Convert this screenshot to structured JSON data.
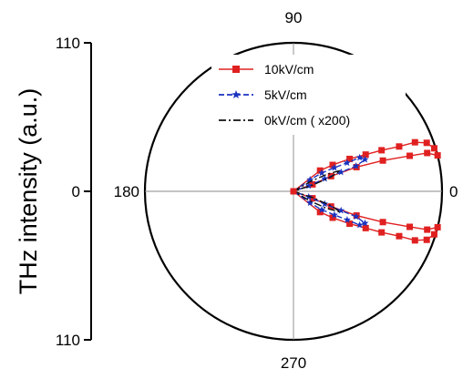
{
  "chart_data": {
    "type": "scatter",
    "coordinate_system": "polar",
    "title": "",
    "ylabel": "THz intensity (a.u.)",
    "radial_axis": {
      "min": 0,
      "max": 110,
      "tick_labels": [
        "110",
        "0",
        "110"
      ]
    },
    "angle_labels": {
      "top": "90",
      "left": "180",
      "right": "0",
      "bottom": "270"
    },
    "grid": true,
    "legend_position": "top-left (inside)",
    "series": [
      {
        "name": "10kV/cm",
        "color": "#e02020",
        "marker": "square",
        "line": "solid",
        "points": [
          {
            "r": 0,
            "theta": 0
          },
          {
            "r": 25,
            "theta": 38
          },
          {
            "r": 35,
            "theta": 34
          },
          {
            "r": 48,
            "theta": 30
          },
          {
            "r": 60,
            "theta": 27
          },
          {
            "r": 72,
            "theta": 25
          },
          {
            "r": 85,
            "theta": 23
          },
          {
            "r": 97,
            "theta": 22
          },
          {
            "r": 105,
            "theta": 20
          },
          {
            "r": 109,
            "theta": 17
          },
          {
            "r": 110,
            "theta": 14
          },
          {
            "r": 103,
            "theta": 16
          },
          {
            "r": 90,
            "theta": 17
          },
          {
            "r": 70,
            "theta": 19
          },
          {
            "r": 50,
            "theta": 21
          },
          {
            "r": 30,
            "theta": 22
          },
          {
            "r": 15,
            "theta": 20
          },
          {
            "r": 0,
            "theta": 0
          },
          {
            "r": 15,
            "theta": -20
          },
          {
            "r": 30,
            "theta": -22
          },
          {
            "r": 50,
            "theta": -21
          },
          {
            "r": 70,
            "theta": -19
          },
          {
            "r": 90,
            "theta": -17
          },
          {
            "r": 103,
            "theta": -16
          },
          {
            "r": 110,
            "theta": -14
          },
          {
            "r": 109,
            "theta": -17
          },
          {
            "r": 105,
            "theta": -20
          },
          {
            "r": 97,
            "theta": -22
          },
          {
            "r": 85,
            "theta": -23
          },
          {
            "r": 72,
            "theta": -25
          },
          {
            "r": 60,
            "theta": -27
          },
          {
            "r": 48,
            "theta": -30
          },
          {
            "r": 35,
            "theta": -34
          },
          {
            "r": 25,
            "theta": -38
          },
          {
            "r": 0,
            "theta": 0
          }
        ]
      },
      {
        "name": "5kV/cm",
        "color": "#1a33c0",
        "marker": "star",
        "line": "dashed",
        "points": [
          {
            "r": 0,
            "theta": 0
          },
          {
            "r": 15,
            "theta": 35
          },
          {
            "r": 25,
            "theta": 33
          },
          {
            "r": 35,
            "theta": 30
          },
          {
            "r": 45,
            "theta": 28
          },
          {
            "r": 55,
            "theta": 27
          },
          {
            "r": 58,
            "theta": 24
          },
          {
            "r": 50,
            "theta": 22
          },
          {
            "r": 38,
            "theta": 22
          },
          {
            "r": 25,
            "theta": 22
          },
          {
            "r": 12,
            "theta": 20
          },
          {
            "r": 0,
            "theta": 0
          },
          {
            "r": 12,
            "theta": -20
          },
          {
            "r": 25,
            "theta": -22
          },
          {
            "r": 38,
            "theta": -22
          },
          {
            "r": 50,
            "theta": -22
          },
          {
            "r": 58,
            "theta": -24
          },
          {
            "r": 55,
            "theta": -27
          },
          {
            "r": 45,
            "theta": -28
          },
          {
            "r": 35,
            "theta": -30
          },
          {
            "r": 25,
            "theta": -33
          },
          {
            "r": 15,
            "theta": -35
          },
          {
            "r": 0,
            "theta": 0
          }
        ]
      },
      {
        "name": "0kV/cm ( x200)",
        "color": "#111111",
        "marker": "none",
        "line": "dashdot",
        "points": [
          {
            "r": 0,
            "theta": 0
          },
          {
            "r": 15,
            "theta": 30
          },
          {
            "r": 28,
            "theta": 27
          },
          {
            "r": 38,
            "theta": 24
          },
          {
            "r": 30,
            "theta": 21
          },
          {
            "r": 15,
            "theta": 18
          },
          {
            "r": 0,
            "theta": 0
          },
          {
            "r": 15,
            "theta": -18
          },
          {
            "r": 30,
            "theta": -21
          },
          {
            "r": 38,
            "theta": -24
          },
          {
            "r": 28,
            "theta": -27
          },
          {
            "r": 15,
            "theta": -30
          },
          {
            "r": 0,
            "theta": 0
          }
        ]
      }
    ]
  }
}
